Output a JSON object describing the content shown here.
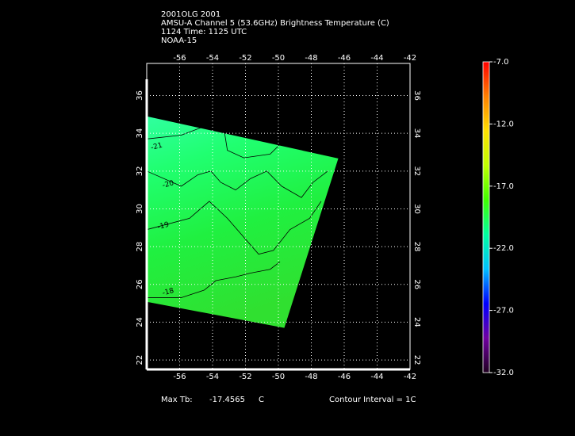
{
  "chart_data": {
    "type": "swath",
    "title_lines": [
      "2001OLG 2001",
      "AMSU-A Channel 5 (53.6GHz) Brightness Temperature (C)",
      "1124 Time: 1125 UTC",
      "NOAA-15"
    ],
    "xlim": [
      -58,
      -42
    ],
    "ylim": [
      21.5,
      37.7
    ],
    "xticks": [
      -56,
      -54,
      -52,
      -50,
      -48,
      -46,
      -44,
      -42
    ],
    "yticks": [
      22,
      24,
      26,
      28,
      30,
      32,
      34,
      36
    ],
    "grid": true,
    "swath": [
      [
        -58,
        34.9
      ],
      [
        -46.36,
        32.67
      ],
      [
        -49.64,
        23.7
      ],
      [
        -58,
        25.08
      ]
    ],
    "contours": [
      {
        "value": -21,
        "label": "-21",
        "label_at": [
          -57.4,
          33.3
        ],
        "points": [
          [
            -58,
            33.7
          ],
          [
            -55.9,
            33.9
          ],
          [
            -54.7,
            34.3
          ],
          [
            -53.3,
            34.2
          ],
          [
            -53.1,
            33.1
          ],
          [
            -52.1,
            32.7
          ],
          [
            -50.5,
            32.9
          ],
          [
            -49.8,
            33.5
          ]
        ]
      },
      {
        "value": -20,
        "label": "-20",
        "label_at": [
          -56.7,
          31.3
        ],
        "points": [
          [
            -58,
            32.0
          ],
          [
            -55.9,
            31.2
          ],
          [
            -54.9,
            31.8
          ],
          [
            -54.1,
            32.0
          ],
          [
            -53.5,
            31.4
          ],
          [
            -52.6,
            31.0
          ],
          [
            -51.7,
            31.6
          ],
          [
            -50.7,
            32.0
          ],
          [
            -49.8,
            31.2
          ],
          [
            -48.6,
            30.6
          ],
          [
            -47.9,
            31.4
          ],
          [
            -47.0,
            32.0
          ]
        ]
      },
      {
        "value": -19,
        "label": "-19",
        "label_at": [
          -57.0,
          29.1
        ],
        "points": [
          [
            -58,
            28.9
          ],
          [
            -55.4,
            29.5
          ],
          [
            -54.2,
            30.4
          ],
          [
            -53.1,
            29.5
          ],
          [
            -52.1,
            28.5
          ],
          [
            -51.2,
            27.6
          ],
          [
            -50.3,
            27.8
          ],
          [
            -49.3,
            28.9
          ],
          [
            -48.1,
            29.5
          ],
          [
            -47.4,
            30.4
          ]
        ]
      },
      {
        "value": -18,
        "label": "-18",
        "label_at": [
          -56.7,
          25.6
        ],
        "points": [
          [
            -58,
            25.3
          ],
          [
            -55.9,
            25.3
          ],
          [
            -54.5,
            25.7
          ],
          [
            -53.8,
            26.2
          ],
          [
            -52.6,
            26.4
          ],
          [
            -51.7,
            26.6
          ],
          [
            -50.5,
            26.8
          ],
          [
            -49.9,
            27.2
          ]
        ]
      }
    ],
    "colorbar": {
      "lim": [
        -32,
        -7
      ],
      "ticks": [
        {
          "value": -7,
          "label": "-7.0"
        },
        {
          "value": -12,
          "label": "-12.0"
        },
        {
          "value": -17,
          "label": "-17.0"
        },
        {
          "value": -22,
          "label": "-22.0"
        },
        {
          "value": -27,
          "label": "-27.0"
        },
        {
          "value": -32,
          "label": "-32.0"
        }
      ],
      "colors": [
        "#200020",
        "#7000a0",
        "#0000ff",
        "#00c0ff",
        "#00ffa0",
        "#40ff00",
        "#c0ff00",
        "#ffe000",
        "#ff8000",
        "#ff0000"
      ]
    },
    "max_label": "Max Tb:",
    "max_value": -17.4565,
    "max_unit": "C",
    "contour_interval": "Contour Interval = 1C"
  }
}
